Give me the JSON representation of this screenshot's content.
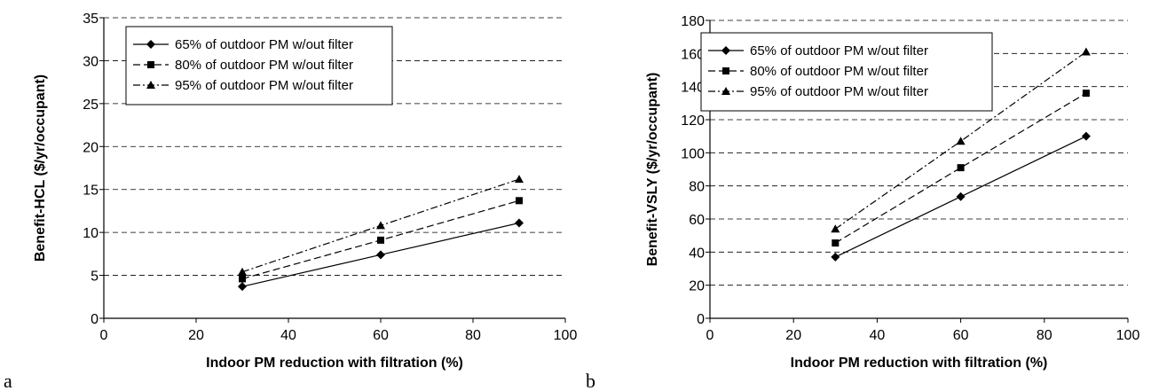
{
  "chart_data": [
    {
      "type": "line",
      "panel_label": "a",
      "xlabel": "Indoor PM reduction with filtration (%)",
      "ylabel": "Benefit-HCL ($/yr/occupant)",
      "xlim": [
        0,
        100
      ],
      "ylim": [
        0,
        35
      ],
      "xticks": [
        0,
        20,
        40,
        60,
        80,
        100
      ],
      "yticks": [
        0,
        5,
        10,
        15,
        20,
        25,
        30,
        35
      ],
      "grid": "horizontal dashed",
      "legend_position": "top-left",
      "x": [
        30,
        60,
        90
      ],
      "series": [
        {
          "name": "65% of outdoor PM w/out filter",
          "marker": "diamond",
          "line_style": "solid",
          "values": [
            3.7,
            7.4,
            11.1
          ]
        },
        {
          "name": "80% of outdoor PM w/out filter",
          "marker": "square",
          "line_style": "dashed",
          "values": [
            4.6,
            9.1,
            13.7
          ]
        },
        {
          "name": "95% of outdoor PM w/out filter",
          "marker": "triangle",
          "line_style": "dash-dot",
          "values": [
            5.4,
            10.8,
            16.2
          ]
        }
      ]
    },
    {
      "type": "line",
      "panel_label": "b",
      "xlabel": "Indoor PM reduction with filtration (%)",
      "ylabel": "Benefit-VSLY ($/yr/occupant)",
      "xlim": [
        0,
        100
      ],
      "ylim": [
        0,
        180
      ],
      "xticks": [
        0,
        20,
        40,
        60,
        80,
        100
      ],
      "yticks": [
        0,
        20,
        40,
        60,
        80,
        100,
        120,
        140,
        160,
        180
      ],
      "grid": "horizontal dashed",
      "legend_position": "top-left",
      "x": [
        30,
        60,
        90
      ],
      "series": [
        {
          "name": "65% of outdoor PM w/out filter",
          "marker": "diamond",
          "line_style": "solid",
          "values": [
            37,
            73.5,
            110
          ]
        },
        {
          "name": "80% of outdoor PM w/out filter",
          "marker": "square",
          "line_style": "dashed",
          "values": [
            45.5,
            91,
            136
          ]
        },
        {
          "name": "95% of outdoor PM w/out filter",
          "marker": "triangle",
          "line_style": "dash-dot",
          "values": [
            54,
            107,
            161
          ]
        }
      ]
    }
  ]
}
